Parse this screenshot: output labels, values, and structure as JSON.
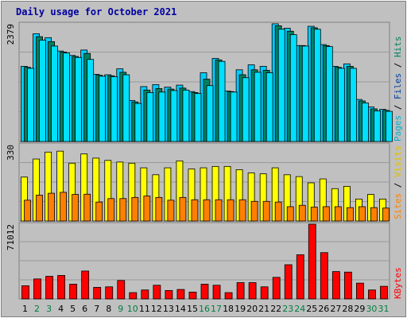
{
  "colors": {
    "background": "#c0c0c0",
    "border": "#808080",
    "hits": "#00ccff",
    "files": "#008060",
    "pages": "#00e0ff",
    "visits": "#ffff00",
    "sites": "#ff8000",
    "kbytes": "#ff0000",
    "title": "#0000a0",
    "weekend": "#008040"
  },
  "chart_data": {
    "type": "bar",
    "title": "Daily usage for October 2021",
    "categories": [
      "1",
      "2",
      "3",
      "4",
      "5",
      "6",
      "7",
      "8",
      "9",
      "10",
      "11",
      "12",
      "13",
      "14",
      "15",
      "16",
      "17",
      "18",
      "19",
      "20",
      "21",
      "22",
      "23",
      "24",
      "25",
      "26",
      "27",
      "28",
      "29",
      "30",
      "31"
    ],
    "weekend_days": [
      "2",
      "3",
      "9",
      "10",
      "16",
      "17",
      "23",
      "24",
      "30",
      "31"
    ],
    "panels": [
      {
        "name": "hits-files-pages",
        "ymax_label": "2379",
        "ymax": 2379,
        "right_label": [
          "Pages",
          "Files",
          "Hits"
        ],
        "series": [
          {
            "name": "Hits",
            "values": [
              1520,
              2180,
              2100,
              1830,
              1740,
              1850,
              1360,
              1350,
              1470,
              830,
              1110,
              1150,
              1100,
              1140,
              1010,
              1390,
              1680,
              1020,
              1450,
              1550,
              1520,
              2380,
              2290,
              1940,
              2330,
              1960,
              1520,
              1570,
              850,
              700,
              650
            ]
          },
          {
            "name": "Files",
            "values": [
              1500,
              2120,
              2020,
              1810,
              1720,
              1780,
              1340,
              1330,
              1400,
              800,
              1040,
              1070,
              1060,
              1080,
              990,
              1260,
              1650,
              1010,
              1350,
              1450,
              1440,
              2340,
              2230,
              1940,
              2300,
              1940,
              1500,
              1520,
              820,
              660,
              630
            ]
          },
          {
            "name": "Pages",
            "values": [
              1480,
              2050,
              1930,
              1790,
              1700,
              1660,
              1320,
              1310,
              1350,
              770,
              990,
              1000,
              1030,
              1040,
              970,
              1130,
              1620,
              1000,
              1290,
              1400,
              1390,
              2270,
              2160,
              1930,
              2270,
              1920,
              1480,
              1480,
              780,
              620,
              610
            ]
          }
        ]
      },
      {
        "name": "visits-sites",
        "ymax_label": "330",
        "ymax": 330,
        "right_label": [
          "Sites",
          "Visits"
        ],
        "series": [
          {
            "name": "Visits",
            "values": [
              190,
              268,
              298,
              302,
              250,
              290,
              272,
              262,
              255,
              250,
              230,
              200,
              230,
              260,
              225,
              230,
              236,
              236,
              222,
              208,
              204,
              230,
              200,
              192,
              165,
              182,
              140,
              150,
              95,
              115,
              95
            ]
          },
          {
            "name": "Sites",
            "values": [
              90,
              112,
              120,
              124,
              115,
              116,
              82,
              97,
              97,
              102,
              108,
              102,
              90,
              102,
              92,
              92,
              92,
              92,
              92,
              85,
              85,
              82,
              62,
              68,
              60,
              62,
              62,
              58,
              62,
              58,
              56
            ]
          }
        ]
      },
      {
        "name": "kbytes",
        "ymax_label": "71012",
        "ymax": 71012,
        "right_label": [
          "KBytes"
        ],
        "series": [
          {
            "name": "KBytes",
            "values": [
              12500,
              19000,
              21500,
              22300,
              14000,
              26500,
              11000,
              11500,
              17500,
              6000,
              8500,
              13000,
              8000,
              9000,
              6500,
              14000,
              13000,
              6000,
              15500,
              15500,
              11500,
              20500,
              32500,
              42000,
              71012,
              44000,
              26000,
              25500,
              15000,
              8500,
              12000
            ]
          }
        ]
      }
    ]
  }
}
